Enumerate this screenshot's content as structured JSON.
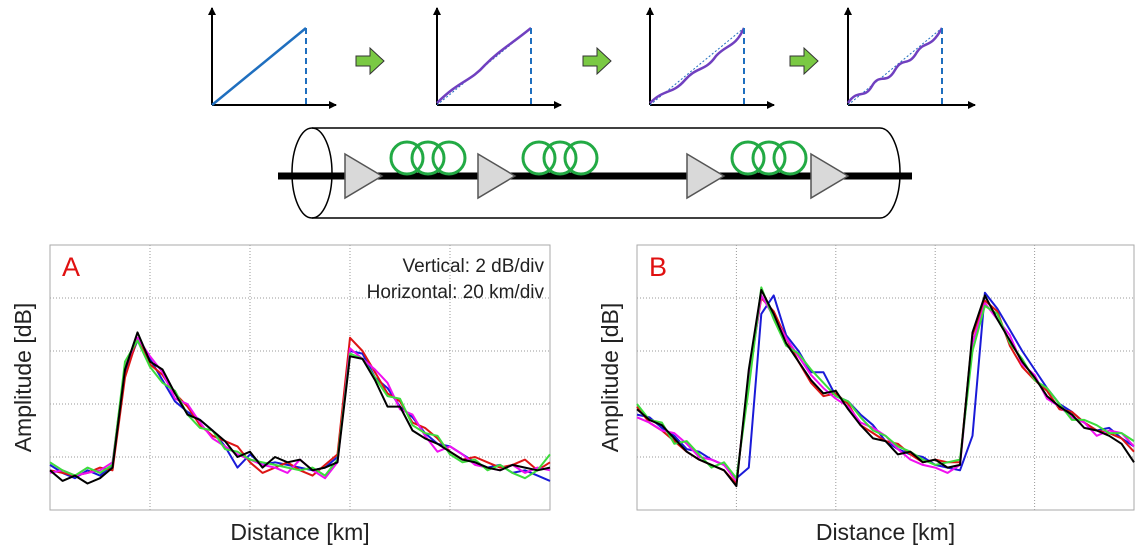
{
  "chart_data": [
    {
      "type": "line",
      "label": "A",
      "annotations": [
        "Vertical: 2 dB/div",
        "Horizontal: 20 km/div"
      ],
      "xlabel": "Distance [km]",
      "ylabel": "Amplitude [dB]",
      "xlim": [
        0,
        100
      ],
      "ylim": [
        0,
        10
      ],
      "xticks": [
        20,
        40,
        60,
        80
      ],
      "yticks": [
        2,
        4,
        6,
        8
      ],
      "grid": true,
      "x": [
        0,
        2.5,
        5,
        7.5,
        10,
        12.5,
        15,
        17.5,
        20,
        22.5,
        25,
        27.5,
        30,
        32.5,
        35,
        37.5,
        40,
        42.5,
        45,
        47.5,
        50,
        52.5,
        55,
        57.5,
        60,
        62.5,
        65,
        67.5,
        70,
        72.5,
        75,
        77.5,
        80,
        82.5,
        85,
        87.5,
        90,
        92.5,
        95,
        97.5,
        100
      ],
      "series": [
        {
          "color": "#1a1ad8",
          "values": [
            1.7,
            1.4,
            1.2,
            1.5,
            1.3,
            1.7,
            5.2,
            6.4,
            5.7,
            4.9,
            4.1,
            3.7,
            3.4,
            3.0,
            2.4,
            1.6,
            2.1,
            1.7,
            1.8,
            1.7,
            1.6,
            1.5,
            1.6,
            2.0,
            6.0,
            5.9,
            5.0,
            4.6,
            3.9,
            3.5,
            2.9,
            2.5,
            2.4,
            2.1,
            1.8,
            1.6,
            1.7,
            1.4,
            1.5,
            1.3,
            1.1
          ]
        },
        {
          "color": "#dd1515",
          "values": [
            1.5,
            1.4,
            1.3,
            1.4,
            1.6,
            1.5,
            5.0,
            6.5,
            5.5,
            5.1,
            4.4,
            3.9,
            3.2,
            2.8,
            2.6,
            2.4,
            1.8,
            1.4,
            1.6,
            1.8,
            1.5,
            1.3,
            1.7,
            2.1,
            6.5,
            6.0,
            5.2,
            4.4,
            4.1,
            3.3,
            3.1,
            2.7,
            2.2,
            1.9,
            2.0,
            1.8,
            1.6,
            1.7,
            1.9,
            1.5,
            1.8
          ]
        },
        {
          "color": "#f010f0",
          "values": [
            1.4,
            1.5,
            1.3,
            1.4,
            1.5,
            1.8,
            5.4,
            6.5,
            5.8,
            5.2,
            4.2,
            4.0,
            3.3,
            2.7,
            2.4,
            2.1,
            1.9,
            1.7,
            1.6,
            1.4,
            1.9,
            1.5,
            1.2,
            1.8,
            6.1,
            5.7,
            5.3,
            4.8,
            3.8,
            3.6,
            2.8,
            2.2,
            2.4,
            2.1,
            1.7,
            1.6,
            1.5,
            1.7,
            1.4,
            1.6,
            1.5
          ]
        },
        {
          "color": "#3cdc3c",
          "values": [
            1.8,
            1.5,
            1.3,
            1.6,
            1.4,
            1.7,
            5.6,
            6.4,
            5.4,
            4.8,
            4.5,
            3.6,
            3.1,
            3.0,
            2.3,
            2.2,
            1.9,
            1.8,
            1.7,
            1.6,
            1.5,
            1.6,
            1.3,
            1.9,
            5.9,
            5.7,
            5.0,
            4.3,
            4.2,
            3.2,
            2.9,
            2.8,
            2.1,
            1.8,
            1.9,
            1.5,
            1.7,
            1.4,
            1.2,
            1.5,
            2.1
          ]
        },
        {
          "color": "#000000",
          "values": [
            1.5,
            1.1,
            1.3,
            1.0,
            1.2,
            1.6,
            5.3,
            6.7,
            5.6,
            5.3,
            4.4,
            3.6,
            3.4,
            3.0,
            2.6,
            2.0,
            2.2,
            1.6,
            2.0,
            1.8,
            1.9,
            1.5,
            1.6,
            1.8,
            5.8,
            5.7,
            4.9,
            3.9,
            3.9,
            3.0,
            2.7,
            2.5,
            2.2,
            1.9,
            1.8,
            1.6,
            1.5,
            1.7,
            1.6,
            1.5,
            1.6
          ]
        }
      ]
    },
    {
      "type": "line",
      "label": "B",
      "xlabel": "Distance [km]",
      "ylabel": "Amplitude [dB]",
      "xlim": [
        0,
        100
      ],
      "ylim": [
        0,
        10
      ],
      "xticks": [
        20,
        40,
        60,
        80
      ],
      "yticks": [
        2,
        4,
        6,
        8
      ],
      "grid": true,
      "x": [
        0,
        2.5,
        5,
        7.5,
        10,
        12.5,
        15,
        17.5,
        20,
        22.5,
        25,
        27.5,
        30,
        32.5,
        35,
        37.5,
        40,
        42.5,
        45,
        47.5,
        50,
        52.5,
        55,
        57.5,
        60,
        62.5,
        65,
        67.5,
        70,
        72.5,
        75,
        77.5,
        80,
        82.5,
        85,
        87.5,
        90,
        92.5,
        95,
        97.5,
        100
      ],
      "series": [
        {
          "color": "#1a1ad8",
          "values": [
            3.6,
            3.5,
            3.1,
            2.8,
            2.3,
            2.2,
            1.9,
            1.7,
            1.2,
            1.6,
            7.4,
            8.1,
            6.6,
            6.0,
            5.2,
            5.2,
            4.3,
            4.1,
            3.6,
            3.2,
            2.6,
            2.3,
            2.1,
            2.0,
            1.7,
            1.6,
            1.5,
            2.8,
            8.2,
            7.6,
            6.8,
            6.0,
            5.3,
            4.6,
            4.0,
            3.7,
            3.3,
            3.0,
            3.1,
            2.7,
            2.4
          ]
        },
        {
          "color": "#dd1515",
          "values": [
            3.9,
            3.3,
            3.0,
            2.6,
            2.2,
            1.9,
            1.7,
            1.5,
            1.0,
            5.1,
            8.0,
            7.5,
            6.5,
            5.6,
            4.8,
            4.3,
            4.4,
            4.0,
            3.2,
            2.9,
            2.6,
            2.5,
            2.1,
            1.8,
            1.9,
            1.8,
            1.8,
            6.6,
            7.9,
            7.5,
            6.2,
            5.4,
            4.9,
            4.5,
            3.8,
            3.7,
            3.3,
            3.0,
            2.9,
            2.7,
            2.2
          ]
        },
        {
          "color": "#f010f0",
          "values": [
            3.5,
            3.3,
            3.0,
            2.9,
            2.5,
            2.0,
            1.9,
            1.7,
            1.1,
            4.9,
            8.1,
            7.3,
            6.5,
            5.8,
            5.1,
            4.6,
            4.2,
            3.9,
            3.3,
            3.1,
            2.8,
            2.3,
            1.9,
            1.7,
            1.6,
            1.4,
            1.7,
            6.3,
            7.8,
            7.2,
            6.6,
            5.5,
            5.1,
            4.2,
            3.9,
            3.5,
            3.3,
            2.8,
            3.0,
            2.9,
            2.4
          ]
        },
        {
          "color": "#3cdc3c",
          "values": [
            4.0,
            3.4,
            3.3,
            2.5,
            2.6,
            2.1,
            1.6,
            1.8,
            1.2,
            4.6,
            8.4,
            7.2,
            6.2,
            5.9,
            5.3,
            4.8,
            4.3,
            4.1,
            3.5,
            3.0,
            2.8,
            2.4,
            2.2,
            1.9,
            1.7,
            1.8,
            1.9,
            6.0,
            7.7,
            7.4,
            6.3,
            5.7,
            4.9,
            4.6,
            4.0,
            3.4,
            3.4,
            3.2,
            2.9,
            2.9,
            2.6
          ]
        },
        {
          "color": "#000000",
          "values": [
            3.8,
            3.4,
            3.2,
            2.7,
            2.2,
            1.9,
            1.7,
            1.5,
            0.9,
            5.3,
            8.3,
            7.4,
            6.3,
            5.6,
            4.9,
            4.4,
            4.5,
            3.8,
            3.2,
            2.7,
            2.6,
            2.1,
            2.2,
            1.8,
            1.9,
            1.6,
            1.7,
            6.7,
            8.1,
            7.2,
            6.4,
            5.6,
            5.0,
            4.3,
            3.9,
            3.6,
            3.1,
            3.0,
            2.8,
            2.5,
            1.8
          ]
        }
      ]
    }
  ]
}
